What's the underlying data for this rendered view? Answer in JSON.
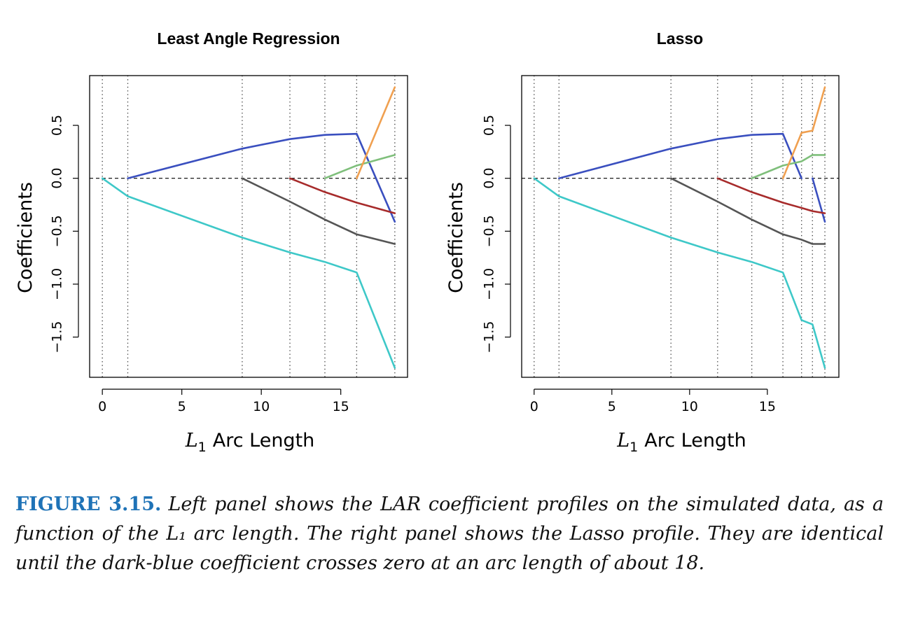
{
  "chart_data": [
    {
      "type": "line",
      "title": "Least Angle Regression",
      "xlabel_main": "L",
      "xlabel_sub": "1",
      "xlabel_rest": "Arc Length",
      "ylabel": "Coefficients",
      "xlim": [
        -0.8,
        19.2
      ],
      "ylim": [
        -1.88,
        0.97
      ],
      "xticks": [
        0,
        5,
        10,
        15
      ],
      "xtick_labels": [
        "0",
        "5",
        "10",
        "15"
      ],
      "yticks": [
        -1.5,
        -1.0,
        -0.5,
        0.0,
        0.5
      ],
      "ytick_labels": [
        "−1.5",
        "−1.0",
        "−0.5",
        "0.0",
        "0.5"
      ],
      "vlines": [
        0,
        1.6,
        8.8,
        11.8,
        14.0,
        16.0,
        18.4
      ],
      "zero_line": true,
      "series": [
        {
          "color": "#3ec8c8",
          "x": [
            0,
            1.6,
            8.8,
            11.8,
            14.0,
            16.0,
            18.4
          ],
          "y": [
            0,
            -0.17,
            -0.56,
            -0.7,
            -0.79,
            -0.89,
            -1.79
          ]
        },
        {
          "color": "#3a4fbf",
          "x": [
            1.6,
            8.8,
            11.8,
            14.0,
            16.0,
            18.4
          ],
          "y": [
            0,
            0.28,
            0.37,
            0.41,
            0.42,
            -0.41
          ]
        },
        {
          "color": "#555555",
          "x": [
            8.8,
            11.8,
            14.0,
            16.0,
            18.4
          ],
          "y": [
            0,
            -0.22,
            -0.39,
            -0.53,
            -0.62
          ]
        },
        {
          "color": "#a72b2b",
          "x": [
            11.8,
            14.0,
            16.0,
            18.4
          ],
          "y": [
            0,
            -0.13,
            -0.23,
            -0.33
          ]
        },
        {
          "color": "#7fbf7b",
          "x": [
            14.0,
            16.0,
            18.4
          ],
          "y": [
            0,
            0.12,
            0.22
          ]
        },
        {
          "color": "#f0a050",
          "x": [
            16.0,
            18.4
          ],
          "y": [
            0,
            0.86
          ]
        }
      ]
    },
    {
      "type": "line",
      "title": "Lasso",
      "xlabel_main": "L",
      "xlabel_sub": "1",
      "xlabel_rest": "Arc Length",
      "ylabel": "Coefficients",
      "xlim": [
        -0.8,
        19.6
      ],
      "ylim": [
        -1.88,
        0.97
      ],
      "xticks": [
        0,
        5,
        10,
        15
      ],
      "xtick_labels": [
        "0",
        "5",
        "10",
        "15"
      ],
      "yticks": [
        -1.5,
        -1.0,
        -0.5,
        0.0,
        0.5
      ],
      "ytick_labels": [
        "−1.5",
        "−1.0",
        "−0.5",
        "0.0",
        "0.5"
      ],
      "vlines": [
        0,
        1.6,
        8.8,
        11.8,
        14.0,
        16.0,
        17.2,
        17.9,
        18.7
      ],
      "zero_line": true,
      "series": [
        {
          "color": "#3ec8c8",
          "x": [
            0,
            1.6,
            8.8,
            11.8,
            14.0,
            16.0,
            17.2,
            17.9,
            18.7
          ],
          "y": [
            0,
            -0.17,
            -0.56,
            -0.7,
            -0.79,
            -0.89,
            -1.34,
            -1.38,
            -1.79
          ]
        },
        {
          "color": "#3a4fbf",
          "x": [
            1.6,
            8.8,
            11.8,
            14.0,
            16.0,
            17.2
          ],
          "y": [
            0,
            0.28,
            0.37,
            0.41,
            0.42,
            0
          ]
        },
        {
          "color": "#3a4fbf",
          "x": [
            17.9,
            18.7
          ],
          "y": [
            0,
            -0.41
          ]
        },
        {
          "color": "#555555",
          "x": [
            8.8,
            11.8,
            14.0,
            16.0,
            17.2,
            17.9,
            18.7
          ],
          "y": [
            0,
            -0.22,
            -0.39,
            -0.53,
            -0.58,
            -0.62,
            -0.62
          ]
        },
        {
          "color": "#a72b2b",
          "x": [
            11.8,
            14.0,
            16.0,
            17.2,
            17.9,
            18.7
          ],
          "y": [
            0,
            -0.13,
            -0.23,
            -0.28,
            -0.31,
            -0.33
          ]
        },
        {
          "color": "#7fbf7b",
          "x": [
            14.0,
            16.0,
            17.2,
            17.9,
            18.7
          ],
          "y": [
            0,
            0.12,
            0.16,
            0.22,
            0.22
          ]
        },
        {
          "color": "#f0a050",
          "x": [
            16.0,
            17.2,
            17.9,
            18.7
          ],
          "y": [
            0,
            0.43,
            0.45,
            0.86
          ]
        }
      ]
    }
  ],
  "caption": {
    "label": "FIGURE 3.15.",
    "text": "Left panel shows the LAR coefficient profiles on the simulated data, as a function of the L₁ arc length. The right panel shows the Lasso profile. They are identical until the dark-blue coefficient crosses zero at an arc length of about 18."
  }
}
